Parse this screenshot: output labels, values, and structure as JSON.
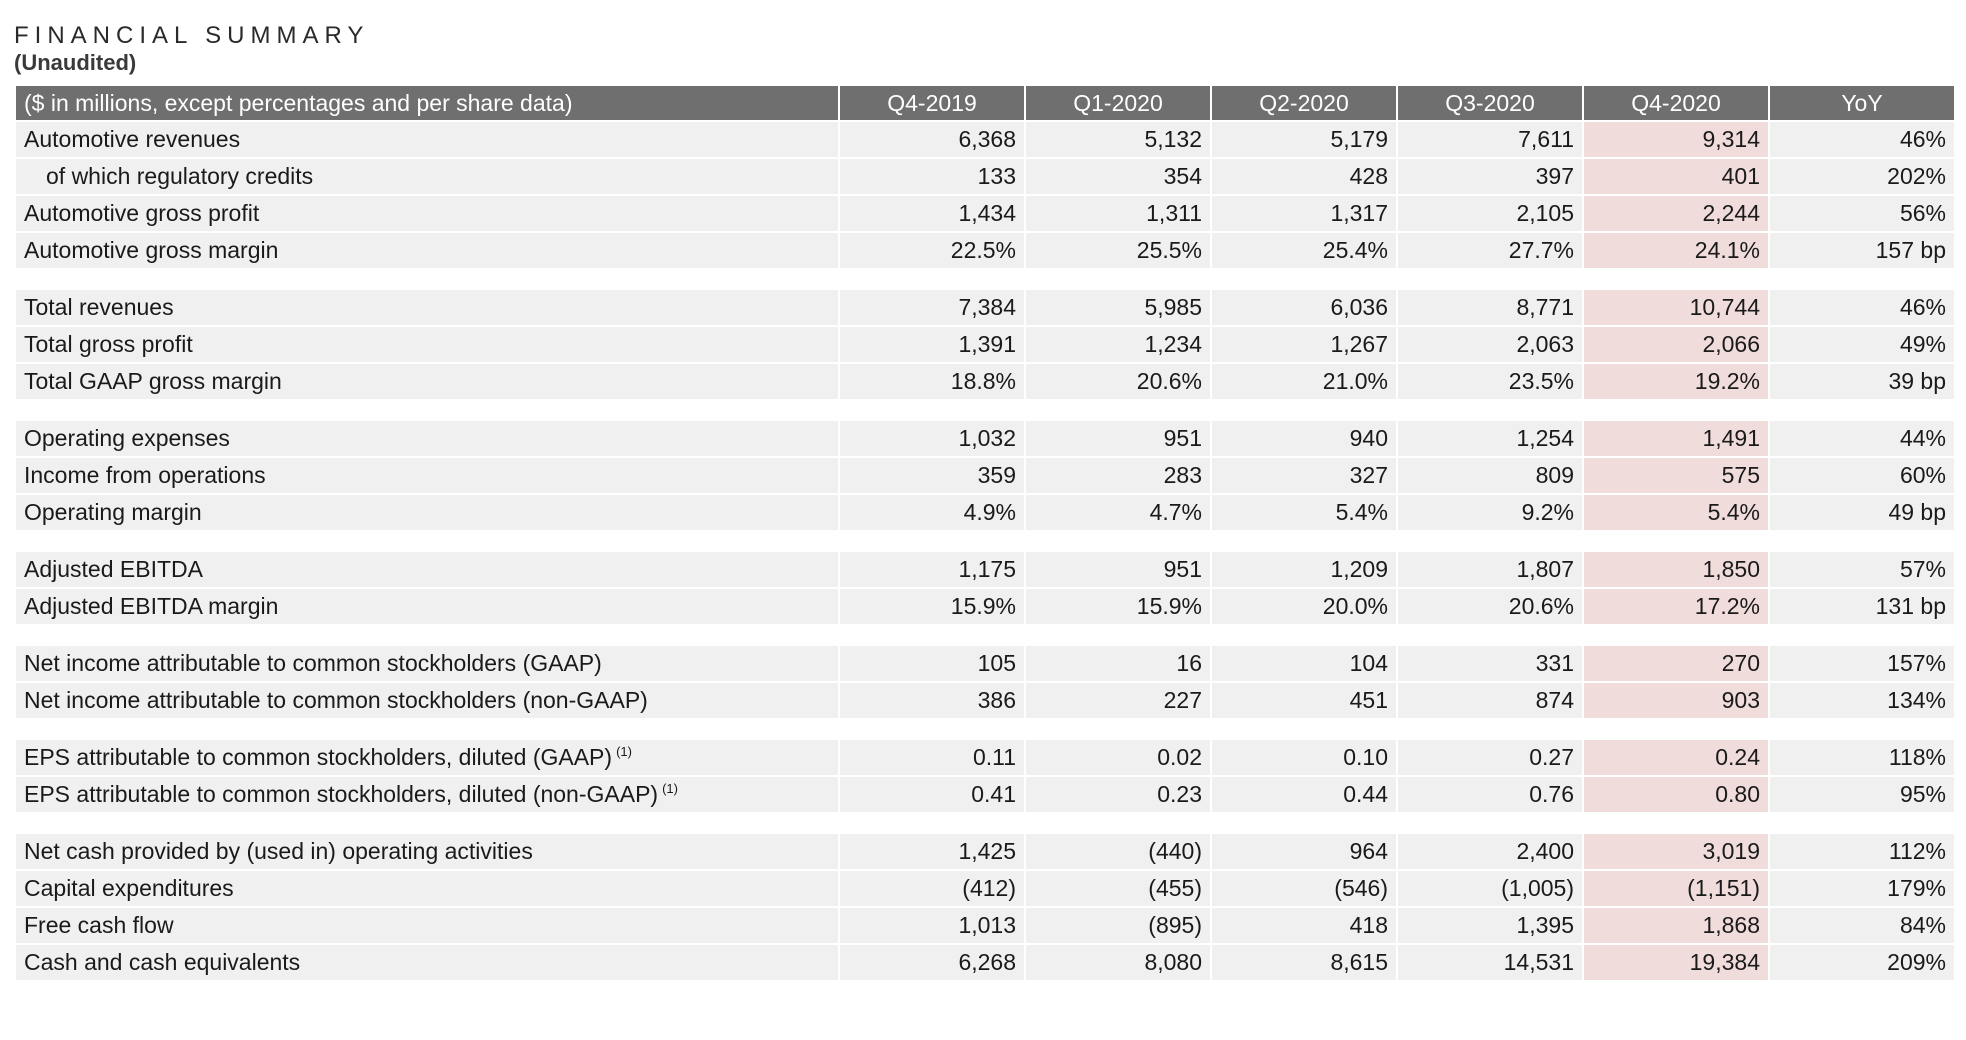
{
  "title": "FINANCIAL SUMMARY",
  "subtitle": "(Unaudited)",
  "table": {
    "header_label": "($ in millions, except percentages and per share data)",
    "columns": [
      "Q4-2019",
      "Q1-2020",
      "Q2-2020",
      "Q3-2020",
      "Q4-2020",
      "YoY"
    ],
    "highlight_column": "Q4-2020",
    "highlight_color": "#f1dcdc",
    "header_color": "#6f6f6f",
    "groups": [
      {
        "rows": [
          {
            "label": "Automotive revenues",
            "indent": false,
            "values": [
              "6,368",
              "5,132",
              "5,179",
              "7,611",
              "9,314",
              "46%"
            ]
          },
          {
            "label": "of which regulatory credits",
            "indent": true,
            "values": [
              "133",
              "354",
              "428",
              "397",
              "401",
              "202%"
            ]
          },
          {
            "label": "Automotive gross profit",
            "indent": false,
            "values": [
              "1,434",
              "1,311",
              "1,317",
              "2,105",
              "2,244",
              "56%"
            ]
          },
          {
            "label": "Automotive gross margin",
            "indent": false,
            "values": [
              "22.5%",
              "25.5%",
              "25.4%",
              "27.7%",
              "24.1%",
              "157 bp"
            ]
          }
        ]
      },
      {
        "rows": [
          {
            "label": "Total revenues",
            "indent": false,
            "values": [
              "7,384",
              "5,985",
              "6,036",
              "8,771",
              "10,744",
              "46%"
            ]
          },
          {
            "label": "Total gross profit",
            "indent": false,
            "values": [
              "1,391",
              "1,234",
              "1,267",
              "2,063",
              "2,066",
              "49%"
            ]
          },
          {
            "label": "Total GAAP gross margin",
            "indent": false,
            "values": [
              "18.8%",
              "20.6%",
              "21.0%",
              "23.5%",
              "19.2%",
              "39 bp"
            ]
          }
        ]
      },
      {
        "rows": [
          {
            "label": "Operating expenses",
            "indent": false,
            "values": [
              "1,032",
              "951",
              "940",
              "1,254",
              "1,491",
              "44%"
            ]
          },
          {
            "label": "Income from operations",
            "indent": false,
            "values": [
              "359",
              "283",
              "327",
              "809",
              "575",
              "60%"
            ]
          },
          {
            "label": "Operating margin",
            "indent": false,
            "values": [
              "4.9%",
              "4.7%",
              "5.4%",
              "9.2%",
              "5.4%",
              "49 bp"
            ]
          }
        ]
      },
      {
        "rows": [
          {
            "label": "Adjusted EBITDA",
            "indent": false,
            "values": [
              "1,175",
              "951",
              "1,209",
              "1,807",
              "1,850",
              "57%"
            ]
          },
          {
            "label": "Adjusted EBITDA margin",
            "indent": false,
            "values": [
              "15.9%",
              "15.9%",
              "20.0%",
              "20.6%",
              "17.2%",
              "131 bp"
            ]
          }
        ]
      },
      {
        "rows": [
          {
            "label": "Net income attributable to common stockholders (GAAP)",
            "indent": false,
            "values": [
              "105",
              "16",
              "104",
              "331",
              "270",
              "157%"
            ]
          },
          {
            "label": "Net income attributable to common stockholders (non-GAAP)",
            "indent": false,
            "values": [
              "386",
              "227",
              "451",
              "874",
              "903",
              "134%"
            ]
          }
        ]
      },
      {
        "rows": [
          {
            "label": "EPS attributable to common stockholders, diluted (GAAP)",
            "footnote": "(1)",
            "indent": false,
            "values": [
              "0.11",
              "0.02",
              "0.10",
              "0.27",
              "0.24",
              "118%"
            ]
          },
          {
            "label": "EPS attributable to common stockholders, diluted (non-GAAP)",
            "footnote": "(1)",
            "indent": false,
            "values": [
              "0.41",
              "0.23",
              "0.44",
              "0.76",
              "0.80",
              "95%"
            ]
          }
        ]
      },
      {
        "rows": [
          {
            "label": "Net cash provided by (used in) operating activities",
            "indent": false,
            "values": [
              "1,425",
              "(440)",
              "964",
              "2,400",
              "3,019",
              "112%"
            ]
          },
          {
            "label": "Capital expenditures",
            "indent": false,
            "values": [
              "(412)",
              "(455)",
              "(546)",
              "(1,005)",
              "(1,151)",
              "179%"
            ]
          },
          {
            "label": "Free cash flow",
            "indent": false,
            "values": [
              "1,013",
              "(895)",
              "418",
              "1,395",
              "1,868",
              "84%"
            ]
          },
          {
            "label": "Cash and cash equivalents",
            "indent": false,
            "values": [
              "6,268",
              "8,080",
              "8,615",
              "14,531",
              "19,384",
              "209%"
            ]
          }
        ]
      }
    ]
  }
}
